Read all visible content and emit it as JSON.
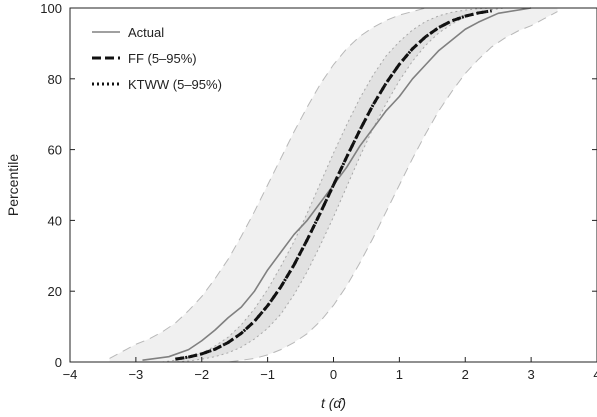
{
  "chart_data": {
    "type": "line",
    "xlabel": "t (α̂)",
    "ylabel": "Percentile",
    "xlim": [
      -4,
      4
    ],
    "ylim": [
      0,
      100
    ],
    "x_ticks": [
      -4,
      -3,
      -2,
      -1,
      0,
      1,
      2,
      3,
      4
    ],
    "y_ticks": [
      0,
      20,
      40,
      60,
      80,
      100
    ],
    "x_tick_labels": [
      "−4",
      "−3",
      "−2",
      "−1",
      "0",
      "1",
      "2",
      "3",
      "4"
    ],
    "y_tick_labels": [
      "0",
      "20",
      "40",
      "60",
      "80",
      "100"
    ],
    "grid": false,
    "legend_position": "top-left",
    "legend": [
      "Actual",
      "FF (5–95%)",
      "KTWW (5–95%)"
    ],
    "colors": {
      "actual": "#808080",
      "ff": "#111111",
      "ktww": "#111111",
      "band_wide": "#f0f0f0",
      "band_wide_edge": "#b8b8b8",
      "band_narrow": "#e1e1e1",
      "band_narrow_edge": "#a8a8a8"
    },
    "series": [
      {
        "name": "Actual",
        "x": [
          -2.9,
          -2.5,
          -2.2,
          -2.0,
          -1.8,
          -1.6,
          -1.4,
          -1.2,
          -1.0,
          -0.8,
          -0.6,
          -0.4,
          -0.2,
          0.0,
          0.2,
          0.4,
          0.6,
          0.8,
          1.0,
          1.2,
          1.4,
          1.6,
          1.8,
          2.0,
          2.2,
          2.5,
          3.0
        ],
        "y": [
          0.5,
          1.5,
          3.5,
          6,
          9,
          12.5,
          15.5,
          20,
          26,
          31,
          36,
          40,
          45,
          50,
          55,
          61,
          66,
          71,
          75,
          80,
          84,
          88,
          91,
          94,
          96,
          98.5,
          100
        ]
      },
      {
        "name": "FF (5–95%)",
        "x": [
          -2.4,
          -2.2,
          -2.0,
          -1.8,
          -1.6,
          -1.4,
          -1.2,
          -1.0,
          -0.8,
          -0.6,
          -0.4,
          -0.2,
          0.0,
          0.2,
          0.4,
          0.6,
          0.8,
          1.0,
          1.2,
          1.4,
          1.6,
          1.8,
          2.0,
          2.2,
          2.4
        ],
        "y": [
          0.8,
          1.4,
          2.3,
          3.6,
          5.5,
          8.1,
          11.5,
          15.9,
          21.2,
          27.4,
          34.5,
          42.1,
          50,
          57.9,
          65.5,
          72.6,
          78.8,
          84.1,
          88.5,
          91.9,
          94.5,
          96.4,
          97.7,
          98.6,
          99.2
        ]
      },
      {
        "name": "KTWW (5–95%)",
        "x": [
          -2.4,
          -2.2,
          -2.0,
          -1.8,
          -1.6,
          -1.4,
          -1.2,
          -1.0,
          -0.8,
          -0.6,
          -0.4,
          -0.2,
          0.0,
          0.2,
          0.4,
          0.6,
          0.8,
          1.0,
          1.2,
          1.4,
          1.6,
          1.8,
          2.0,
          2.2,
          2.4
        ],
        "y": [
          0.8,
          1.4,
          2.3,
          3.6,
          5.5,
          8.1,
          11.5,
          15.9,
          21.2,
          27.4,
          34.5,
          42.1,
          50,
          57.9,
          65.5,
          72.6,
          78.8,
          84.1,
          88.5,
          91.9,
          94.5,
          96.4,
          97.7,
          98.6,
          99.2
        ]
      }
    ],
    "bands": [
      {
        "series": "FF (5–95%)",
        "x": [
          -3.4,
          -3.2,
          -3.0,
          -2.8,
          -2.6,
          -2.4,
          -2.2,
          -2.0,
          -1.8,
          -1.6,
          -1.4,
          -1.2,
          -1.0,
          -0.8,
          -0.6,
          -0.4,
          -0.2,
          0.0,
          0.2,
          0.4,
          0.6,
          0.8,
          1.0,
          1.2,
          1.4,
          1.6,
          1.8,
          2.0,
          2.2,
          2.4,
          2.6,
          2.8,
          3.0,
          3.2,
          3.4
        ],
        "lower": [
          0,
          0,
          0,
          0,
          0,
          0,
          0,
          0,
          0,
          0,
          0.5,
          1,
          2,
          3.5,
          5.5,
          8,
          11.5,
          16,
          21.5,
          28,
          35,
          42.5,
          50,
          57.5,
          64.5,
          71,
          76.5,
          81.5,
          85.5,
          89,
          91.5,
          93.5,
          95,
          97,
          99
        ],
        "upper": [
          1,
          3,
          5,
          6.5,
          8.5,
          11,
          14.5,
          18.5,
          23.5,
          29,
          35.5,
          42.5,
          50,
          57.5,
          65,
          72,
          78.5,
          84,
          88.5,
          92,
          94.5,
          96.5,
          98,
          99,
          100,
          100,
          100,
          100,
          100,
          100,
          100,
          100,
          100,
          100,
          100
        ]
      },
      {
        "series": "KTWW (5–95%)",
        "x": [
          -2.6,
          -2.4,
          -2.2,
          -2.0,
          -1.8,
          -1.6,
          -1.4,
          -1.2,
          -1.0,
          -0.8,
          -0.6,
          -0.4,
          -0.2,
          0.0,
          0.2,
          0.4,
          0.6,
          0.8,
          1.0,
          1.2,
          1.4,
          1.6,
          1.8,
          2.0,
          2.2,
          2.4,
          2.6
        ],
        "lower": [
          0,
          0,
          0.3,
          0.8,
          1.5,
          2.6,
          4.2,
          6.5,
          9.5,
          13.5,
          19,
          25.5,
          33,
          41,
          49.5,
          58,
          66,
          73,
          79.5,
          85,
          89.5,
          93,
          95.5,
          97.5,
          98.7,
          99.5,
          100
        ],
        "upper": [
          0,
          0.5,
          1.3,
          2.5,
          4.5,
          7,
          10.5,
          15,
          20.5,
          27,
          34,
          42,
          50.5,
          59,
          67,
          74.5,
          81,
          86.5,
          90.5,
          93.8,
          96.2,
          97.8,
          98.8,
          99.4,
          99.8,
          100,
          100
        ]
      }
    ]
  }
}
